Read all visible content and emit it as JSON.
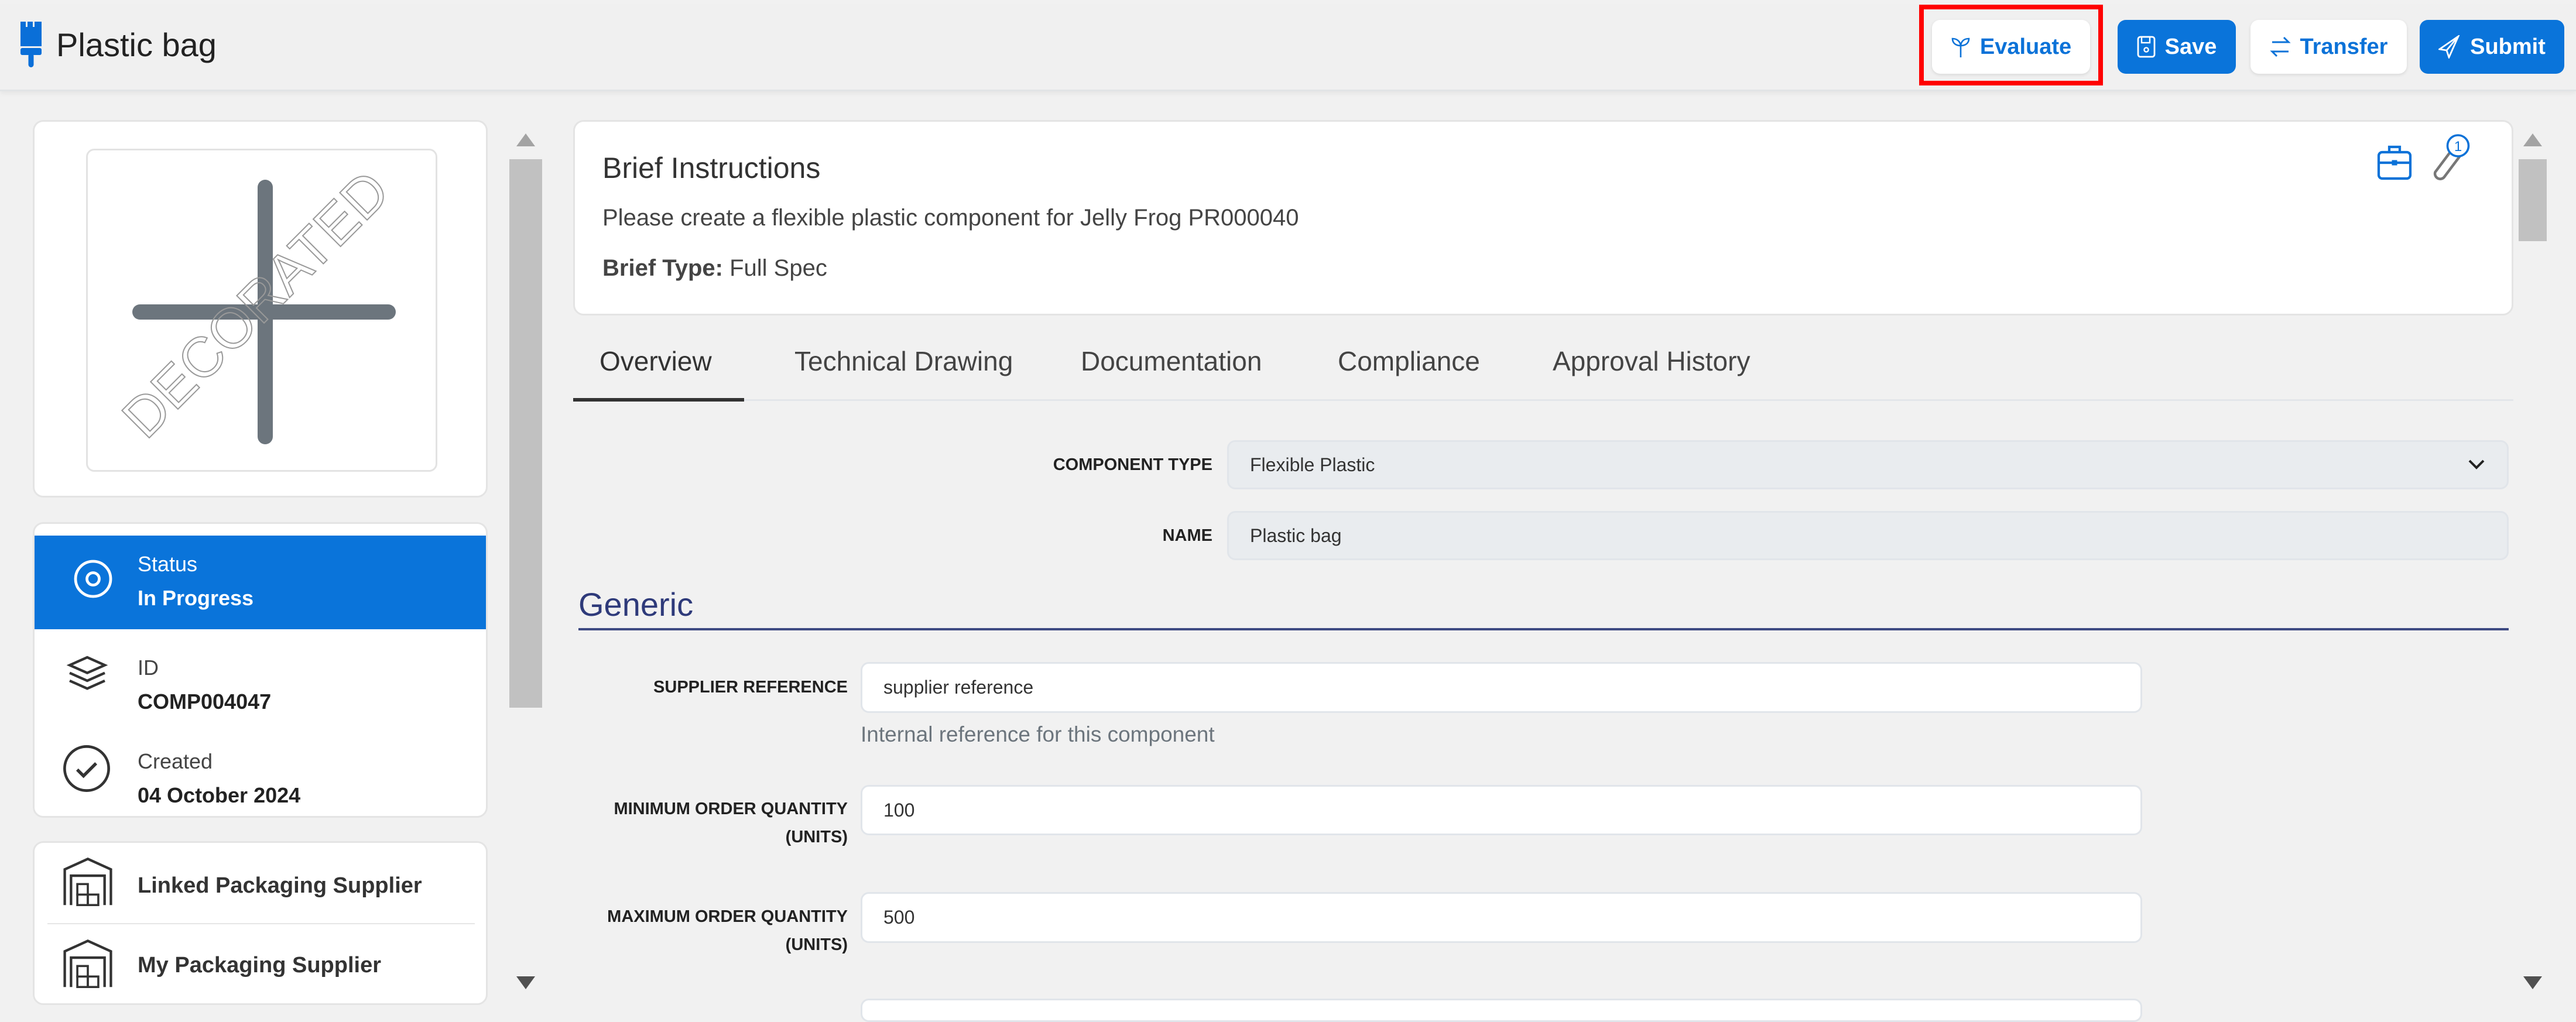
{
  "header": {
    "title": "Plastic bag",
    "buttons": {
      "evaluate": "Evaluate",
      "save": "Save",
      "transfer": "Transfer",
      "submit": "Submit"
    }
  },
  "sidebar": {
    "image_watermark": "DECORATED",
    "status": {
      "label": "Status",
      "value": "In Progress"
    },
    "id": {
      "label": "ID",
      "value": "COMP004047"
    },
    "created": {
      "label": "Created",
      "value": "04 October 2024"
    },
    "suppliers": [
      "Linked Packaging Supplier",
      "My Packaging Supplier"
    ]
  },
  "brief": {
    "title": "Brief Instructions",
    "text": "Please create a flexible plastic component for Jelly Frog PR000040",
    "type_label": "Brief Type:",
    "type_value": "Full Spec",
    "attachment_count": "1"
  },
  "tabs": [
    "Overview",
    "Technical Drawing",
    "Documentation",
    "Compliance",
    "Approval History"
  ],
  "active_tab": "Overview",
  "form": {
    "component_type": {
      "label": "COMPONENT TYPE",
      "value": "Flexible Plastic"
    },
    "name": {
      "label": "NAME",
      "value": "Plastic bag"
    },
    "section": "Generic",
    "supplier_reference": {
      "label": "SUPPLIER REFERENCE",
      "value": "supplier reference",
      "help": "Internal reference for this component"
    },
    "min_order": {
      "label_1": "MINIMUM ORDER QUANTITY",
      "label_2": "(UNITS)",
      "value": "100"
    },
    "max_order": {
      "label_1": "MAXIMUM ORDER QUANTITY",
      "label_2": "(UNITS)",
      "value": "500"
    }
  },
  "colors": {
    "primary": "#0a74da",
    "section_heading": "#2e3a7a",
    "highlight": "#ff0000"
  }
}
